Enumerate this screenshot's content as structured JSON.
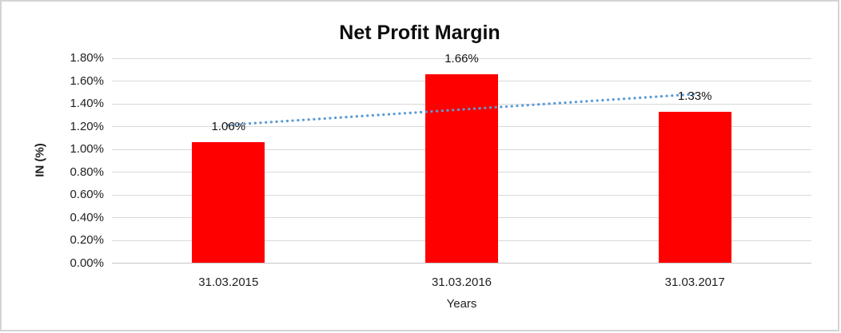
{
  "chart_data": {
    "type": "bar",
    "title": "Net Profit Margin",
    "xlabel": "Years",
    "ylabel": "IN (%)",
    "categories": [
      "31.03.2015",
      "31.03.2016",
      "31.03.2017"
    ],
    "values": [
      1.06,
      1.66,
      1.33
    ],
    "data_labels": [
      "1.06%",
      "1.66%",
      "1.33%"
    ],
    "ylim": [
      0,
      1.8
    ],
    "ytick_step": 0.2,
    "ytick_labels": [
      "0.00%",
      "0.20%",
      "0.40%",
      "0.60%",
      "0.80%",
      "1.00%",
      "1.20%",
      "1.40%",
      "1.60%",
      "1.80%"
    ],
    "grid": true,
    "legend": false,
    "trendline": {
      "type": "linear",
      "style": "dotted"
    },
    "colors": {
      "bar": "#ff0000",
      "trendline": "#5b9bd5",
      "gridline": "#d9d9d9",
      "axis_line": "#c6c6c6",
      "text": "#1f1f1f",
      "frame_border": "#d4d4d4",
      "background": "#ffffff"
    }
  }
}
